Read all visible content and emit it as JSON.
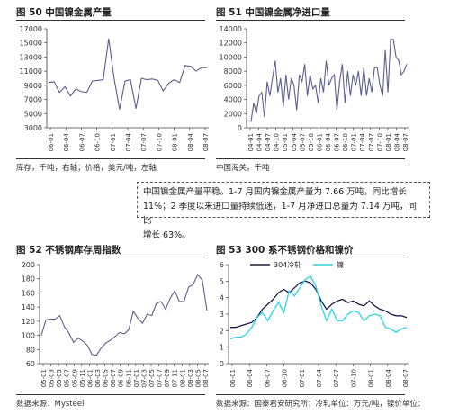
{
  "panels": [
    {
      "id": "p50",
      "title": "图 50 中国镍金属产量",
      "source": "库存，千吨，右轴；价格，美元/吨，左轴"
    },
    {
      "id": "p51",
      "title": "图 51 中国镍金属净进口量",
      "source": "中国海关，千吨"
    },
    {
      "id": "p52",
      "title": "图 52 不锈钢库存周指数",
      "source": "数据来源：Mysteel"
    },
    {
      "id": "p53",
      "title": "图 53 300 系不锈钢价格和镍价",
      "source": "数据来源：国泰君安研究所；冷轧单位：万元/吨，镍价单位："
    }
  ],
  "summary": {
    "line1": "中国镍金属产量平稳。1-7 月国内镍金属产量为 7.66 万吨，同比增长",
    "line2": "11%；2 季度以来进口量持续低迷，1-7 月净进口总量为 7.14 万吨，同比",
    "line3": "增长 63%。"
  },
  "colors": {
    "series": "#5b5f8f",
    "cold_rolled": "#1c1c4a",
    "nickel": "#2ad4ea",
    "axis": "#444444"
  },
  "chart_data": [
    {
      "type": "line",
      "id": "p50",
      "ylim": [
        3000,
        17000
      ],
      "yticks": [
        3000,
        5000,
        7000,
        9000,
        11000,
        13000,
        15000,
        17000
      ],
      "xticks": [
        "06-01",
        "06-04",
        "06-07",
        "06-10",
        "07-01",
        "07-04",
        "07-07",
        "07-10",
        "08-01",
        "08-04",
        "08-07"
      ],
      "series": [
        {
          "values": [
            9400,
            9500,
            8000,
            8800,
            7500,
            8500,
            8100,
            8000,
            9600,
            9700,
            9800,
            15600,
            10000,
            5600,
            9600,
            9800,
            5700,
            10000,
            9800,
            9900,
            9700,
            8200,
            9300,
            9800,
            9400,
            11800,
            11700,
            11000,
            11500,
            11500
          ]
        }
      ]
    },
    {
      "type": "line",
      "id": "p51",
      "ylim": [
        0,
        14000
      ],
      "yticks": [
        0,
        2000,
        4000,
        6000,
        8000,
        10000,
        12000,
        14000
      ],
      "xticks": [
        "04-01",
        "04-04",
        "04-07",
        "04-10",
        "05-01",
        "05-04",
        "05-07",
        "05-10",
        "06-01",
        "06-04",
        "06-07",
        "06-10",
        "07-01",
        "07-04",
        "07-07",
        "07-10",
        "08-01",
        "08-04",
        "08-07"
      ],
      "series": [
        {
          "values": [
            1000,
            900,
            3500,
            2000,
            4500,
            5000,
            1500,
            6500,
            4500,
            7000,
            9500,
            5000,
            7000,
            3000,
            7500,
            4000,
            7000,
            6000,
            2500,
            7500,
            6500,
            9000,
            4500,
            7500,
            5500,
            6000,
            3500,
            7000,
            5000,
            9500,
            6000,
            7000,
            7500,
            2500,
            6500,
            9000,
            3500,
            8000,
            4500,
            7500,
            6000,
            8000,
            4500,
            8500,
            4500,
            7000,
            5000,
            8500,
            8500,
            6000,
            4500,
            11000,
            5000,
            12500,
            12500,
            10000,
            9500,
            7500,
            8000,
            9000
          ]
        }
      ]
    },
    {
      "type": "line",
      "id": "p52",
      "ylim": [
        60,
        200
      ],
      "yticks": [
        60,
        80,
        100,
        120,
        140,
        160,
        180,
        200
      ],
      "xticks": [
        "05-01",
        "05-03",
        "05-05",
        "05-07",
        "05-09",
        "05-11",
        "06-01",
        "06-03",
        "06-05",
        "06-07",
        "06-09",
        "06-11",
        "07-01",
        "07-03",
        "07-05",
        "07-07",
        "07-09",
        "07-11",
        "08-01",
        "08-03",
        "08-05",
        "08-07"
      ],
      "series": [
        {
          "values": [
            100,
            122,
            123,
            123,
            128,
            112,
            103,
            90,
            96,
            92,
            86,
            73,
            72,
            82,
            89,
            93,
            98,
            104,
            102,
            108,
            134,
            124,
            117,
            130,
            128,
            145,
            148,
            137,
            152,
            163,
            148,
            148,
            168,
            172,
            186,
            178,
            135
          ]
        }
      ]
    },
    {
      "type": "line",
      "id": "p53",
      "ylim": [
        0,
        6
      ],
      "yticks": [
        0,
        1,
        2,
        3,
        4,
        5,
        6
      ],
      "xticks": [
        "06-01",
        "06-04",
        "06-07",
        "06-10",
        "07-01",
        "07-04",
        "07-07",
        "07-10",
        "08-01",
        "08-04",
        "08-07"
      ],
      "legend": [
        "304冷轧",
        "镍"
      ],
      "series": [
        {
          "name": "304冷轧",
          "values": [
            2.2,
            2.2,
            2.3,
            2.4,
            2.5,
            2.8,
            3.3,
            3.6,
            3.9,
            4.3,
            4.5,
            4.3,
            4.6,
            4.9,
            5.0,
            4.9,
            4.5,
            3.8,
            3.3,
            3.6,
            3.8,
            3.9,
            3.7,
            3.8,
            3.6,
            3.5,
            3.8,
            3.5,
            3.3,
            3.2,
            3.0,
            2.9,
            2.9,
            2.8
          ]
        },
        {
          "name": "镍",
          "values": [
            1.5,
            1.6,
            1.6,
            1.8,
            2.2,
            2.8,
            3.1,
            2.6,
            3.2,
            3.7,
            3.1,
            4.4,
            4.1,
            4.6,
            5.1,
            5.3,
            4.7,
            3.5,
            2.6,
            3.3,
            2.6,
            2.6,
            3.0,
            3.2,
            3.1,
            2.6,
            2.9,
            3.0,
            2.9,
            2.2,
            2.1,
            1.9,
            2.1,
            2.2
          ]
        }
      ]
    }
  ]
}
